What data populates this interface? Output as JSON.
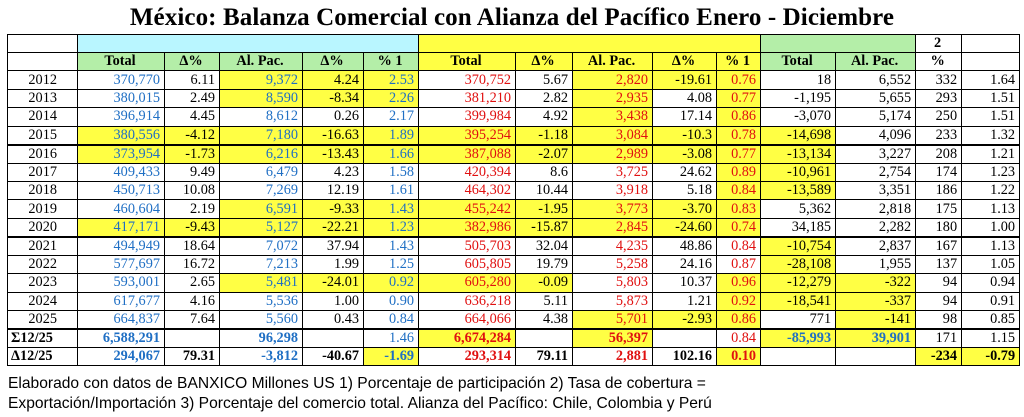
{
  "title": "México: Balanza Comercial con Alianza del Pacífico Enero - Diciembre",
  "headers": {
    "note2": "2",
    "cols": [
      "",
      "Total",
      "Δ%",
      "Al. Pac.",
      "Δ%",
      "% 1",
      "Total",
      "Δ%",
      "Al. Pac.",
      "Δ%",
      "% 1",
      "Total",
      "Al. Pac.",
      "%",
      ""
    ]
  },
  "rows": [
    {
      "year": "2012",
      "c": [
        "370,770",
        "6.11",
        "9,372",
        "4.24",
        "2.53",
        "370,752",
        "5.67",
        "2,820",
        "-19.61",
        "0.76",
        "18",
        "6,552",
        "332",
        "1.64"
      ]
    },
    {
      "year": "2013",
      "c": [
        "380,015",
        "2.49",
        "8,590",
        "-8.34",
        "2.26",
        "381,210",
        "2.82",
        "2,935",
        "4.08",
        "0.77",
        "-1,195",
        "5,655",
        "293",
        "1.51"
      ]
    },
    {
      "year": "2014",
      "c": [
        "396,914",
        "4.45",
        "8,612",
        "0.26",
        "2.17",
        "399,984",
        "4.92",
        "3,438",
        "17.14",
        "0.86",
        "-3,070",
        "5,174",
        "250",
        "1.51"
      ]
    },
    {
      "year": "2015",
      "c": [
        "380,556",
        "-4.12",
        "7,180",
        "-16.63",
        "1.89",
        "395,254",
        "-1.18",
        "3,084",
        "-10.3",
        "0.78",
        "-14,698",
        "4,096",
        "233",
        "1.32"
      ]
    },
    {
      "year": "2016",
      "c": [
        "373,954",
        "-1.73",
        "6,216",
        "-13.43",
        "1.66",
        "387,088",
        "-2.07",
        "2,989",
        "-3.08",
        "0.77",
        "-13,134",
        "3,227",
        "208",
        "1.21"
      ]
    },
    {
      "year": "2017",
      "c": [
        "409,433",
        "9.49",
        "6,479",
        "4.23",
        "1.58",
        "420,394",
        "8.6",
        "3,725",
        "24.62",
        "0.89",
        "-10,961",
        "2,754",
        "174",
        "1.23"
      ]
    },
    {
      "year": "2018",
      "c": [
        "450,713",
        "10.08",
        "7,269",
        "12.19",
        "1.61",
        "464,302",
        "10.44",
        "3,918",
        "5.18",
        "0.84",
        "-13,589",
        "3,351",
        "186",
        "1.22"
      ]
    },
    {
      "year": "2019",
      "c": [
        "460,604",
        "2.19",
        "6,591",
        "-9.33",
        "1.43",
        "455,242",
        "-1.95",
        "3,773",
        "-3.70",
        "0.83",
        "5,362",
        "2,818",
        "175",
        "1.13"
      ]
    },
    {
      "year": "2020",
      "c": [
        "417,171",
        "-9.43",
        "5,127",
        "-22.21",
        "1.23",
        "382,986",
        "-15.87",
        "2,845",
        "-24.60",
        "0.74",
        "34,185",
        "2,282",
        "180",
        "1.00"
      ]
    },
    {
      "year": "2021",
      "c": [
        "494,949",
        "18.64",
        "7,072",
        "37.94",
        "1.43",
        "505,703",
        "32.04",
        "4,235",
        "48.86",
        "0.84",
        "-10,754",
        "2,837",
        "167",
        "1.13"
      ]
    },
    {
      "year": "2022",
      "c": [
        "577,697",
        "16.72",
        "7,213",
        "1.99",
        "1.25",
        "605,805",
        "19.79",
        "5,258",
        "24.16",
        "0.87",
        "-28,108",
        "1,955",
        "137",
        "1.05"
      ]
    },
    {
      "year": "2023",
      "c": [
        "593,001",
        "2.65",
        "5,481",
        "-24.01",
        "0.92",
        "605,280",
        "-0.09",
        "5,803",
        "10.37",
        "0.96",
        "-12,279",
        "-322",
        "94",
        "0.94"
      ]
    },
    {
      "year": "2024",
      "c": [
        "617,677",
        "4.16",
        "5,536",
        "1.00",
        "0.90",
        "636,218",
        "5.11",
        "5,873",
        "1.21",
        "0.92",
        "-18,541",
        "-337",
        "94",
        "0.91"
      ]
    },
    {
      "year": "2025",
      "c": [
        "664,837",
        "7.64",
        "5,560",
        "0.43",
        "0.84",
        "664,066",
        "4.38",
        "5,701",
        "-2.93",
        "0.86",
        "771",
        "-141",
        "98",
        "0.85"
      ]
    }
  ],
  "sum_row": {
    "label": "Σ12/25",
    "c": [
      "6,588,291",
      "",
      "96,298",
      "",
      "1.46",
      "6,674,284",
      "",
      "56,397",
      "",
      "0.84",
      "-85,993",
      "39,901",
      "171",
      "1.15"
    ]
  },
  "delta_row": {
    "label": "Δ12/25",
    "c": [
      "294,067",
      "79.31",
      "-3,812",
      "-40.67",
      "-1.69",
      "293,314",
      "79.11",
      "2,881",
      "102.16",
      "0.10",
      "",
      "",
      "-234",
      "-0.79"
    ]
  },
  "footer": {
    "line1": "Elaborado con datos de BANXICO    Millones US 1) Porcentaje de participación   2) Tasa de cobertura =",
    "line2": "Exportación/Importación 3) Porcentaje del comercio total. Alianza del Pacífico: Chile, Colombia y Perú"
  },
  "colors": {
    "export_blue": "#1f6fc4",
    "import_red": "#e01010",
    "highlight_yellow": "#ffff44",
    "header_cyan": "#b9f6ff",
    "header_green": "#b4eea8"
  }
}
